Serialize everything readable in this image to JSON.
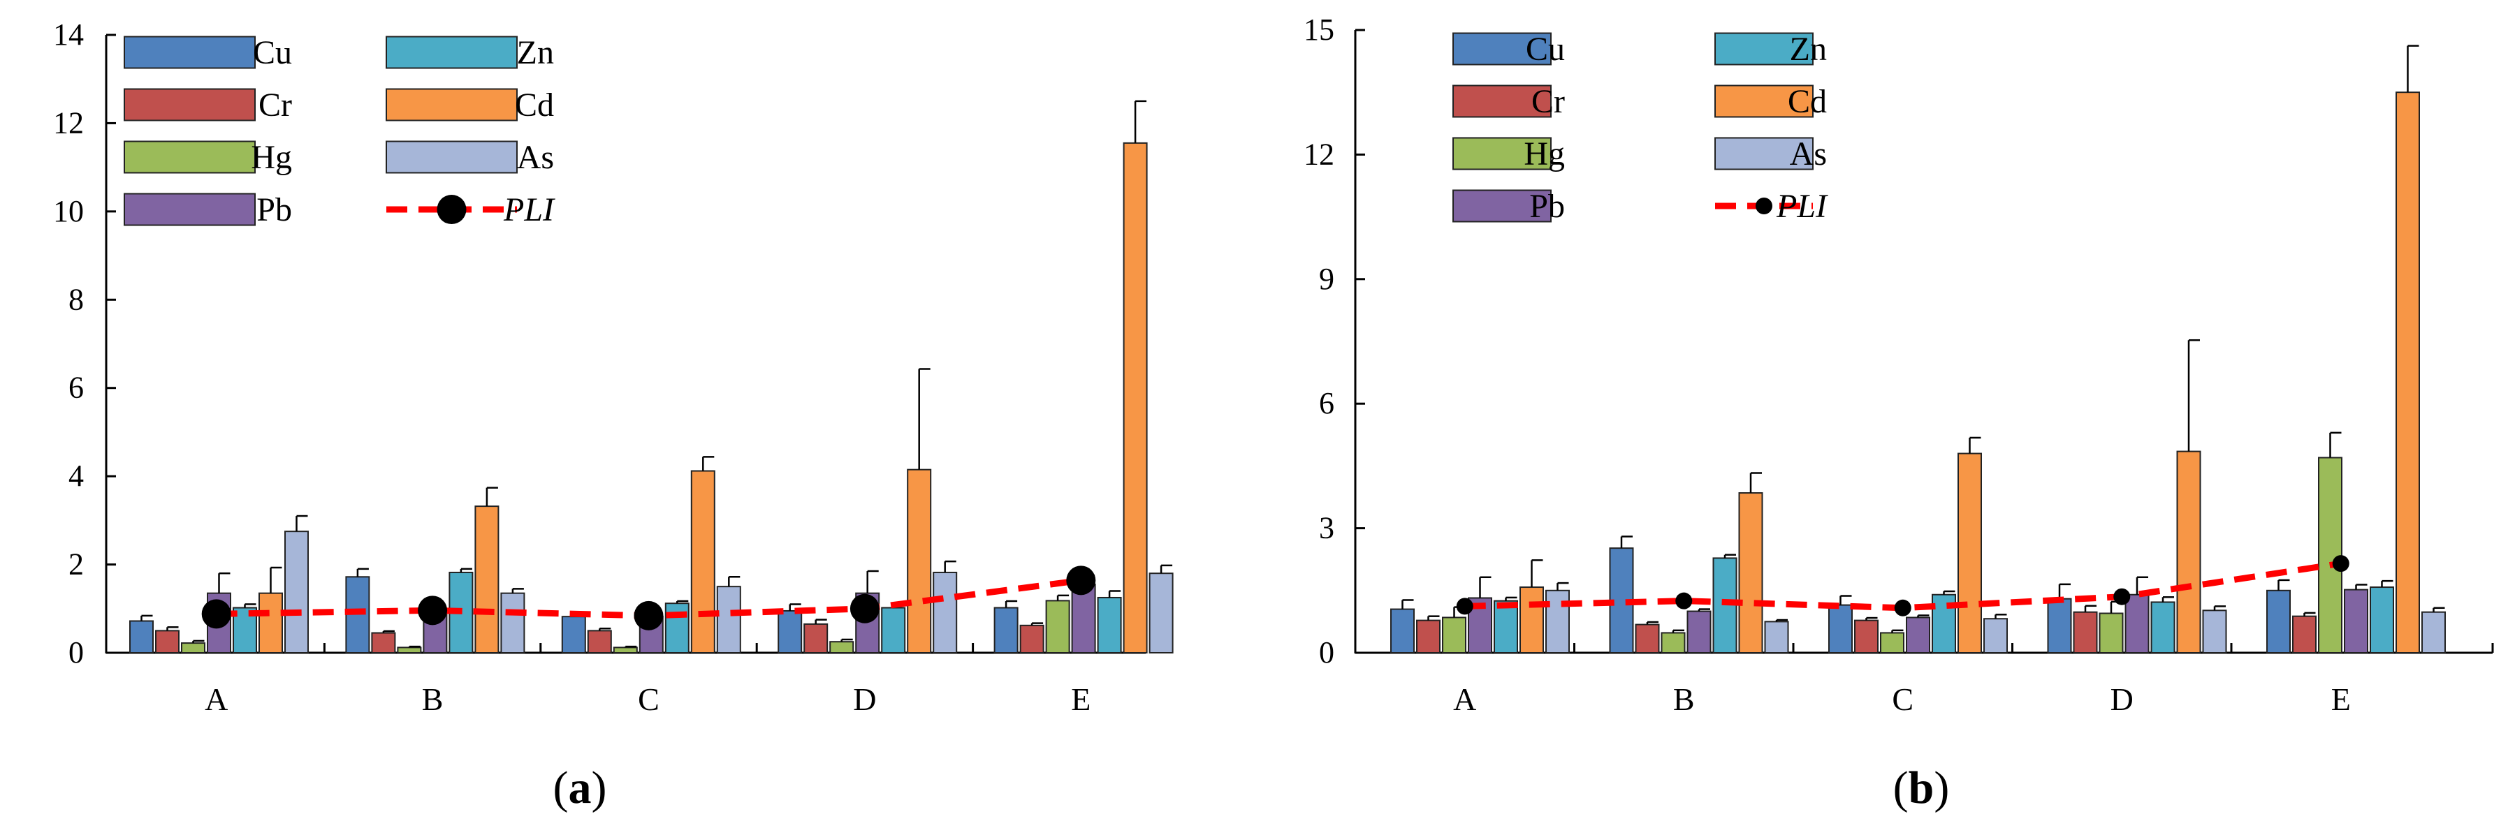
{
  "chart_data": [
    {
      "type": "bar",
      "panel_label": "a",
      "title": "",
      "xlabel": "",
      "ylabel": "",
      "categories": [
        "A",
        "B",
        "C",
        "D",
        "E"
      ],
      "ylim": [
        0,
        14
      ],
      "yticks": [
        0,
        2,
        4,
        6,
        8,
        10,
        12,
        14
      ],
      "ytick_labels": [
        "0",
        "2",
        "4",
        "6",
        "8",
        "10",
        "12",
        "14"
      ],
      "legend_columns": [
        [
          "Cu",
          "Cr",
          "Hg",
          "Pb"
        ],
        [
          "Zn",
          "Cd",
          "As",
          "PLI"
        ]
      ],
      "series": [
        {
          "name": "Cu",
          "color": "#4f81bd",
          "values": [
            0.72,
            1.72,
            0.82,
            0.95,
            1.02
          ],
          "errors": [
            0.12,
            0.18,
            0.1,
            0.15,
            0.15
          ]
        },
        {
          "name": "Cr",
          "color": "#c0504d",
          "values": [
            0.5,
            0.45,
            0.5,
            0.65,
            0.62
          ],
          "errors": [
            0.08,
            0.04,
            0.05,
            0.1,
            0.05
          ]
        },
        {
          "name": "Hg",
          "color": "#9bbb59",
          "values": [
            0.22,
            0.12,
            0.12,
            0.25,
            1.18
          ],
          "errors": [
            0.05,
            0.02,
            0.02,
            0.05,
            0.12
          ]
        },
        {
          "name": "Pb",
          "color": "#8064a2",
          "values": [
            1.35,
            0.95,
            0.82,
            1.35,
            1.55
          ],
          "errors": [
            0.45,
            0.1,
            0.1,
            0.5,
            0.2
          ]
        },
        {
          "name": "Zn",
          "color": "#4bacc6",
          "values": [
            1.02,
            1.82,
            1.12,
            1.02,
            1.25
          ],
          "errors": [
            0.08,
            0.08,
            0.05,
            0.08,
            0.15
          ]
        },
        {
          "name": "Cd",
          "color": "#f79646",
          "values": [
            1.35,
            3.32,
            4.12,
            4.15,
            11.55
          ],
          "errors": [
            0.58,
            0.42,
            0.32,
            2.28,
            0.95
          ]
        },
        {
          "name": "As",
          "color": "#a6b6d8",
          "values": [
            2.75,
            1.35,
            1.5,
            1.82,
            1.8
          ],
          "errors": [
            0.35,
            0.1,
            0.22,
            0.25,
            0.18
          ]
        }
      ],
      "line": {
        "name": "PLI",
        "color": "#ff0000",
        "values": [
          0.88,
          0.96,
          0.84,
          1.0,
          1.64
        ]
      }
    },
    {
      "type": "bar",
      "panel_label": "b",
      "title": "",
      "xlabel": "",
      "ylabel": "",
      "categories": [
        "A",
        "B",
        "C",
        "D",
        "E"
      ],
      "ylim": [
        0,
        15
      ],
      "yticks": [
        0,
        3,
        6,
        9,
        12,
        15
      ],
      "ytick_labels": [
        "0",
        "3",
        "6",
        "9",
        "12",
        "15"
      ],
      "legend_columns": [
        [
          "Cu",
          "Cr",
          "Hg",
          "Pb"
        ],
        [
          "Zn",
          "Cd",
          "As",
          "PLI"
        ]
      ],
      "series": [
        {
          "name": "Cu",
          "color": "#4f81bd",
          "values": [
            1.05,
            2.52,
            1.15,
            1.3,
            1.5
          ],
          "errors": [
            0.22,
            0.28,
            0.22,
            0.35,
            0.25
          ]
        },
        {
          "name": "Cr",
          "color": "#c0504d",
          "values": [
            0.78,
            0.68,
            0.78,
            0.98,
            0.88
          ],
          "errors": [
            0.1,
            0.06,
            0.06,
            0.15,
            0.08
          ]
        },
        {
          "name": "Hg",
          "color": "#9bbb59",
          "values": [
            0.85,
            0.48,
            0.48,
            0.95,
            4.7
          ],
          "errors": [
            0.25,
            0.06,
            0.06,
            0.28,
            0.6
          ]
        },
        {
          "name": "Pb",
          "color": "#8064a2",
          "values": [
            1.32,
            1.0,
            0.85,
            1.4,
            1.52
          ],
          "errors": [
            0.5,
            0.05,
            0.05,
            0.42,
            0.12
          ]
        },
        {
          "name": "Zn",
          "color": "#4bacc6",
          "values": [
            1.25,
            2.28,
            1.4,
            1.22,
            1.58
          ],
          "errors": [
            0.08,
            0.08,
            0.08,
            0.12,
            0.15
          ]
        },
        {
          "name": "Cd",
          "color": "#f79646",
          "values": [
            1.58,
            3.85,
            4.8,
            4.85,
            13.5
          ],
          "errors": [
            0.65,
            0.48,
            0.38,
            2.68,
            1.12
          ]
        },
        {
          "name": "As",
          "color": "#a6b6d8",
          "values": [
            1.5,
            0.75,
            0.82,
            1.02,
            0.98
          ],
          "errors": [
            0.18,
            0.04,
            0.1,
            0.1,
            0.1
          ]
        }
      ],
      "line": {
        "name": "PLI",
        "color": "#ff0000",
        "values": [
          1.12,
          1.25,
          1.08,
          1.35,
          2.15
        ]
      }
    }
  ]
}
